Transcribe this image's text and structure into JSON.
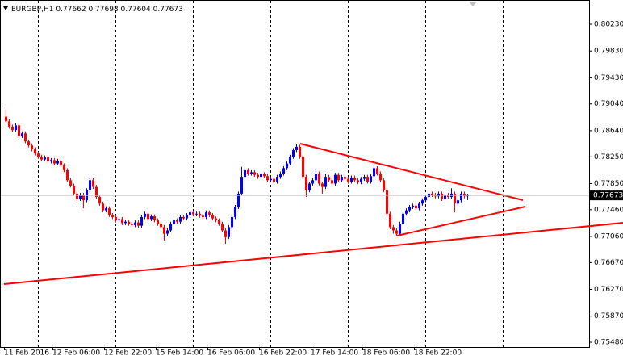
{
  "chart_data": {
    "type": "candlestick",
    "symbol": "EURGBP,H1",
    "bull_color": "#0000ff",
    "bear_color": "#ff0000",
    "ylim": [
      0.75408,
      0.80592
    ],
    "yticks": [
      {
        "value": 0.8023,
        "label": "0.80230"
      },
      {
        "value": 0.7983,
        "label": "0.79830"
      },
      {
        "value": 0.7943,
        "label": "0.79430"
      },
      {
        "value": 0.7904,
        "label": "0.79040"
      },
      {
        "value": 0.7864,
        "label": "0.78640"
      },
      {
        "value": 0.7825,
        "label": "0.78250"
      },
      {
        "value": 0.7785,
        "label": "0.77850"
      },
      {
        "value": 0.7746,
        "label": "0.77460"
      },
      {
        "value": 0.7706,
        "label": "0.77060"
      },
      {
        "value": 0.7667,
        "label": "0.76670"
      },
      {
        "value": 0.7627,
        "label": "0.76270"
      },
      {
        "value": 0.7587,
        "label": "0.75870"
      },
      {
        "value": 0.7548,
        "label": "0.75480"
      }
    ],
    "categories": [
      "11 Feb 2016",
      null,
      null,
      null,
      null,
      null,
      null,
      null,
      null,
      null,
      null,
      null,
      null,
      null,
      null,
      "12 Feb 06:00",
      null,
      null,
      null,
      null,
      null,
      null,
      null,
      null,
      null,
      null,
      null,
      null,
      null,
      null,
      null,
      "12 Feb 22:00",
      null,
      null,
      null,
      null,
      null,
      null,
      null,
      null,
      null,
      null,
      null,
      null,
      null,
      null,
      null,
      "15 Feb 14:00",
      null,
      null,
      null,
      null,
      null,
      null,
      null,
      null,
      null,
      null,
      null,
      null,
      null,
      null,
      null,
      "16 Feb 06:00",
      null,
      null,
      null,
      null,
      null,
      null,
      null,
      null,
      null,
      null,
      null,
      null,
      null,
      null,
      null,
      "16 Feb 22:00",
      null,
      null,
      null,
      null,
      null,
      null,
      null,
      null,
      null,
      null,
      null,
      null,
      null,
      null,
      null,
      "17 Feb 14:00",
      null,
      null,
      null,
      null,
      null,
      null,
      null,
      null,
      null,
      null,
      null,
      null,
      null,
      null,
      null,
      "18 Feb 06:00",
      null,
      null,
      null,
      null,
      null,
      null,
      null,
      null,
      null,
      null,
      null,
      null,
      null,
      null,
      null,
      "18 Feb 22:00",
      null,
      null,
      null,
      null,
      null,
      null,
      null,
      null,
      null,
      null,
      null,
      null,
      null,
      null,
      null,
      null
    ],
    "open": [
      0.7885,
      0.7878,
      0.787,
      0.7865,
      0.7872,
      0.7856,
      0.786,
      0.7848,
      0.7842,
      0.7836,
      0.783,
      0.7825,
      0.7821,
      0.7824,
      0.7818,
      0.782,
      0.7815,
      0.7819,
      0.7812,
      0.7805,
      0.779,
      0.7782,
      0.777,
      0.7762,
      0.7768,
      0.776,
      0.7775,
      0.779,
      0.778,
      0.7765,
      0.7755,
      0.7745,
      0.7748,
      0.7738,
      0.7735,
      0.773,
      0.7732,
      0.7726,
      0.7728,
      0.7725,
      0.7723,
      0.7727,
      0.7722,
      0.7735,
      0.774,
      0.7732,
      0.7736,
      0.773,
      0.7725,
      0.772,
      0.771,
      0.7715,
      0.7725,
      0.773,
      0.7728,
      0.7735,
      0.7733,
      0.7738,
      0.7742,
      0.7739,
      0.774,
      0.7737,
      0.7735,
      0.7742,
      0.7738,
      0.7733,
      0.773,
      0.7725,
      0.7715,
      0.7705,
      0.772,
      0.7735,
      0.775,
      0.777,
      0.7795,
      0.7805,
      0.78,
      0.7802,
      0.7798,
      0.7795,
      0.7799,
      0.7796,
      0.779,
      0.7792,
      0.7788,
      0.7795,
      0.78,
      0.7808,
      0.7815,
      0.7825,
      0.7835,
      0.784,
      0.7825,
      0.7795,
      0.7775,
      0.7785,
      0.779,
      0.78,
      0.7785,
      0.778,
      0.7795,
      0.779,
      0.7785,
      0.7798,
      0.779,
      0.7795,
      0.7792,
      0.7788,
      0.7794,
      0.779,
      0.7787,
      0.7792,
      0.7795,
      0.7788,
      0.7796,
      0.7808,
      0.78,
      0.779,
      0.7775,
      0.774,
      0.772,
      0.7715,
      0.771,
      0.7725,
      0.774,
      0.7745,
      0.775,
      0.7752,
      0.7748,
      0.7755,
      0.776,
      0.7765,
      0.777,
      0.7768,
      0.7766,
      0.777,
      0.7762,
      0.7768,
      0.7765,
      0.777,
      0.7755,
      0.776,
      0.777,
      0.77662
    ],
    "high": [
      0.7896,
      0.7881,
      0.7873,
      0.7875,
      0.7875,
      0.7863,
      0.7863,
      0.7851,
      0.7845,
      0.7839,
      0.7833,
      0.7828,
      0.7827,
      0.7827,
      0.7823,
      0.7823,
      0.7822,
      0.7822,
      0.7815,
      0.7808,
      0.7793,
      0.7785,
      0.7773,
      0.7771,
      0.7771,
      0.7778,
      0.7795,
      0.7793,
      0.7783,
      0.7768,
      0.7758,
      0.7751,
      0.7751,
      0.7741,
      0.7738,
      0.7735,
      0.7735,
      0.7731,
      0.7731,
      0.7728,
      0.773,
      0.773,
      0.7738,
      0.7743,
      0.7743,
      0.7739,
      0.7739,
      0.7733,
      0.7728,
      0.7723,
      0.7718,
      0.7728,
      0.7733,
      0.7733,
      0.7738,
      0.7738,
      0.7741,
      0.7745,
      0.7745,
      0.7743,
      0.7743,
      0.774,
      0.7745,
      0.7745,
      0.7741,
      0.7736,
      0.7733,
      0.7728,
      0.7718,
      0.7723,
      0.7738,
      0.7753,
      0.7773,
      0.781,
      0.7808,
      0.7808,
      0.7805,
      0.7805,
      0.7801,
      0.7802,
      0.7802,
      0.7799,
      0.7795,
      0.7795,
      0.7798,
      0.7803,
      0.7811,
      0.7818,
      0.7828,
      0.7838,
      0.78446,
      0.7843,
      0.7828,
      0.7798,
      0.7788,
      0.7793,
      0.7808,
      0.7803,
      0.7788,
      0.78,
      0.7798,
      0.7793,
      0.7801,
      0.7801,
      0.7798,
      0.7798,
      0.7795,
      0.7797,
      0.7797,
      0.7793,
      0.7795,
      0.7798,
      0.7798,
      0.7799,
      0.7813,
      0.7811,
      0.7803,
      0.7793,
      0.7778,
      0.7743,
      0.7723,
      0.7718,
      0.7728,
      0.7743,
      0.7748,
      0.7753,
      0.7755,
      0.7755,
      0.7758,
      0.7763,
      0.7768,
      0.7773,
      0.7773,
      0.7771,
      0.7773,
      0.7773,
      0.7771,
      0.7771,
      0.7778,
      0.7773,
      0.7763,
      0.7773,
      0.7773,
      0.77698
    ],
    "low": [
      0.7875,
      0.7867,
      0.7862,
      0.7862,
      0.7853,
      0.7853,
      0.7845,
      0.7839,
      0.7833,
      0.7827,
      0.7822,
      0.7818,
      0.7818,
      0.7815,
      0.7815,
      0.7812,
      0.7812,
      0.7809,
      0.7802,
      0.7787,
      0.7779,
      0.7767,
      0.7759,
      0.7759,
      0.7748,
      0.7757,
      0.7772,
      0.7777,
      0.7762,
      0.7752,
      0.7742,
      0.7742,
      0.7735,
      0.7732,
      0.7727,
      0.7727,
      0.7723,
      0.7723,
      0.7722,
      0.772,
      0.772,
      0.7719,
      0.7719,
      0.7732,
      0.7729,
      0.7729,
      0.7727,
      0.7722,
      0.7717,
      0.77,
      0.7707,
      0.7712,
      0.7722,
      0.7725,
      0.7725,
      0.773,
      0.773,
      0.7735,
      0.7736,
      0.7736,
      0.7734,
      0.7732,
      0.7732,
      0.7735,
      0.773,
      0.7727,
      0.7722,
      0.7712,
      0.7695,
      0.7702,
      0.7717,
      0.7732,
      0.7747,
      0.7767,
      0.7792,
      0.7797,
      0.7797,
      0.7795,
      0.7792,
      0.7792,
      0.7793,
      0.7787,
      0.7787,
      0.7785,
      0.7785,
      0.7792,
      0.7797,
      0.7805,
      0.7812,
      0.7822,
      0.7832,
      0.7822,
      0.7792,
      0.7765,
      0.7772,
      0.7782,
      0.7787,
      0.7782,
      0.777,
      0.7777,
      0.7787,
      0.7782,
      0.7782,
      0.7787,
      0.7787,
      0.7789,
      0.7785,
      0.7785,
      0.7787,
      0.7784,
      0.7784,
      0.7789,
      0.7785,
      0.7785,
      0.7793,
      0.7797,
      0.7787,
      0.7772,
      0.7737,
      0.7717,
      0.771,
      0.77072,
      0.7707,
      0.7722,
      0.7737,
      0.7742,
      0.7747,
      0.7745,
      0.7745,
      0.7752,
      0.7757,
      0.7762,
      0.7765,
      0.7763,
      0.7763,
      0.7759,
      0.7759,
      0.7762,
      0.7762,
      0.7742,
      0.7752,
      0.7757,
      0.7763,
      0.77604
    ],
    "close": [
      0.7878,
      0.787,
      0.7865,
      0.7872,
      0.7856,
      0.786,
      0.7848,
      0.7842,
      0.7836,
      0.783,
      0.7825,
      0.7821,
      0.7824,
      0.7818,
      0.782,
      0.7815,
      0.7819,
      0.7812,
      0.7805,
      0.779,
      0.7782,
      0.777,
      0.7762,
      0.7768,
      0.776,
      0.7775,
      0.779,
      0.778,
      0.7765,
      0.7755,
      0.7745,
      0.7748,
      0.7738,
      0.7735,
      0.773,
      0.7732,
      0.7726,
      0.7728,
      0.7725,
      0.7723,
      0.7727,
      0.7722,
      0.7735,
      0.774,
      0.7732,
      0.7736,
      0.773,
      0.7725,
      0.772,
      0.771,
      0.7715,
      0.7725,
      0.773,
      0.7728,
      0.7735,
      0.7733,
      0.7738,
      0.7742,
      0.7739,
      0.774,
      0.7737,
      0.7735,
      0.7742,
      0.7738,
      0.7733,
      0.773,
      0.7725,
      0.7715,
      0.7705,
      0.772,
      0.7735,
      0.775,
      0.777,
      0.7795,
      0.7805,
      0.78,
      0.7802,
      0.7798,
      0.7795,
      0.7799,
      0.7796,
      0.779,
      0.7792,
      0.7788,
      0.7795,
      0.78,
      0.7808,
      0.7815,
      0.7825,
      0.7835,
      0.784,
      0.7825,
      0.7795,
      0.7775,
      0.7785,
      0.779,
      0.78,
      0.7785,
      0.778,
      0.7795,
      0.779,
      0.7785,
      0.7798,
      0.779,
      0.7795,
      0.7792,
      0.7788,
      0.7794,
      0.779,
      0.7787,
      0.7792,
      0.7795,
      0.7788,
      0.7796,
      0.7808,
      0.78,
      0.779,
      0.7775,
      0.774,
      0.772,
      0.7715,
      0.771,
      0.7725,
      0.774,
      0.7745,
      0.775,
      0.7752,
      0.7748,
      0.7755,
      0.776,
      0.7765,
      0.777,
      0.7768,
      0.7766,
      0.777,
      0.7762,
      0.7768,
      0.7765,
      0.777,
      0.7755,
      0.776,
      0.777,
      0.77662,
      0.77673
    ],
    "trendlines": [
      {
        "color": "#ff0000",
        "x": [
          91.25,
          160.25
        ],
        "y": [
          0.78446,
          0.77602
        ]
      },
      {
        "color": "#ff0000",
        "x": [
          121.25,
          161
        ],
        "y": [
          0.77072,
          0.77506
        ]
      },
      {
        "color": "#ff0000",
        "x": [
          -0.5,
          191.25
        ],
        "y": [
          0.76348,
          0.77264
        ]
      }
    ]
  }
}
